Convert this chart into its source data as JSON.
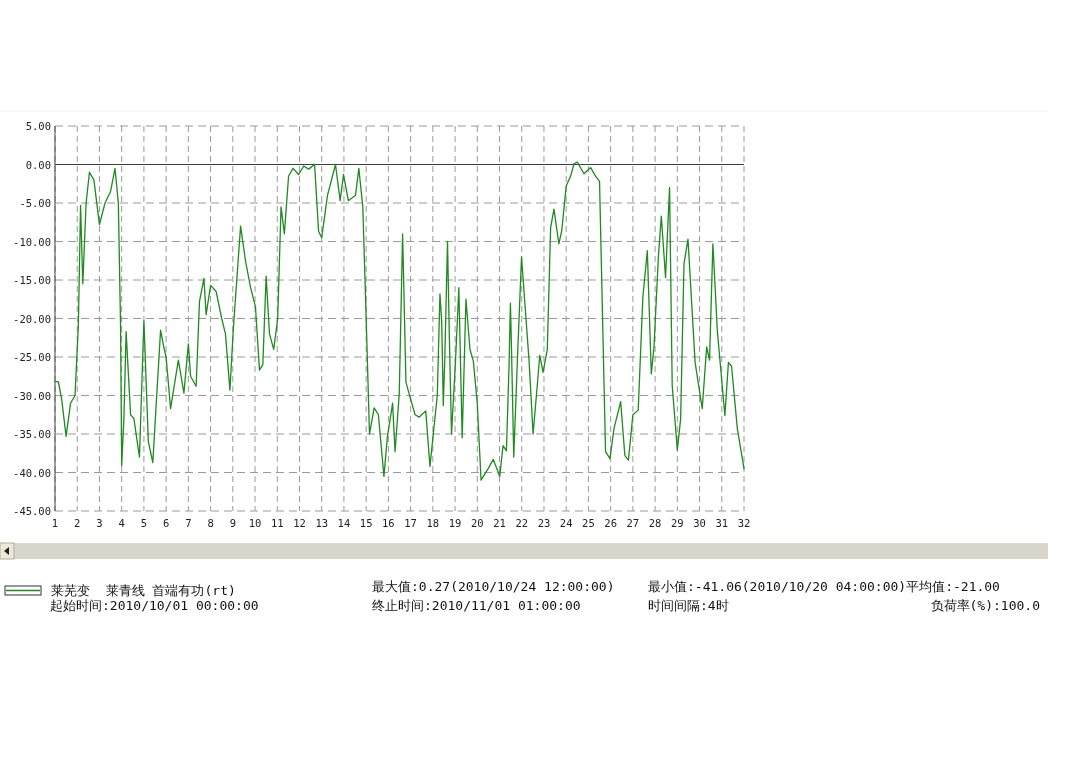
{
  "chart_data": {
    "type": "line",
    "xlim": [
      1,
      32
    ],
    "xticks": [
      1,
      2,
      3,
      4,
      5,
      6,
      7,
      8,
      9,
      10,
      11,
      12,
      13,
      14,
      15,
      16,
      17,
      18,
      19,
      20,
      21,
      22,
      23,
      24,
      25,
      26,
      27,
      28,
      29,
      30,
      31,
      32
    ],
    "ylim": [
      -45,
      5
    ],
    "yticks": [
      {
        "value": 5,
        "label": "5.00"
      },
      {
        "value": 0,
        "label": "0.00"
      },
      {
        "value": -5,
        "label": "-5.00"
      },
      {
        "value": -10,
        "label": "-10.00"
      },
      {
        "value": -15,
        "label": "-15.00"
      },
      {
        "value": -20,
        "label": "-20.00"
      },
      {
        "value": -25,
        "label": "-25.00"
      },
      {
        "value": -30,
        "label": "-30.00"
      },
      {
        "value": -35,
        "label": "-35.00"
      },
      {
        "value": -40,
        "label": "-40.00"
      },
      {
        "value": -45,
        "label": "-45.00"
      }
    ],
    "grid": true,
    "legend": "bottom",
    "line_style": "solid",
    "ref_lines": [
      {
        "axis": "y",
        "value": 0,
        "color": "#404040"
      }
    ],
    "series": [
      {
        "name": "莱芜变  莱青线 首端有功(rt)",
        "color": "#1f8a1f",
        "x": [
          1,
          1.15,
          1.3,
          1.5,
          1.7,
          1.9,
          2.0,
          2.05,
          2.15,
          2.25,
          2.4,
          2.55,
          2.75,
          3.0,
          3.25,
          3.5,
          3.7,
          3.85,
          3.95,
          4.0,
          4.1,
          4.2,
          4.4,
          4.55,
          4.8,
          5.0,
          5.2,
          5.4,
          5.75,
          5.9,
          6.0,
          6.2,
          6.55,
          6.8,
          7.0,
          7.1,
          7.35,
          7.5,
          7.7,
          7.8,
          8.0,
          8.25,
          8.5,
          8.67,
          8.87,
          9.02,
          9.35,
          9.57,
          9.8,
          10.02,
          10.2,
          10.35,
          10.5,
          10.65,
          10.84,
          11.02,
          11.17,
          11.32,
          11.51,
          11.71,
          11.96,
          12.19,
          12.41,
          12.68,
          12.86,
          13.0,
          13.26,
          13.62,
          13.83,
          13.98,
          14.2,
          14.52,
          14.67,
          14.85,
          15.0,
          15.15,
          15.36,
          15.55,
          15.8,
          15.95,
          16.19,
          16.3,
          16.49,
          16.64,
          16.79,
          17.2,
          17.39,
          17.68,
          17.87,
          18.2,
          18.32,
          18.4,
          18.47,
          18.54,
          18.66,
          18.74,
          18.84,
          19.02,
          19.17,
          19.32,
          19.49,
          19.67,
          19.82,
          20.0,
          20.17,
          20.49,
          20.72,
          21.01,
          21.16,
          21.31,
          21.43,
          21.49,
          21.54,
          21.64,
          21.81,
          21.99,
          22.09,
          22.33,
          22.51,
          22.66,
          22.81,
          22.96,
          23.15,
          23.3,
          23.45,
          23.67,
          23.8,
          24.0,
          24.2,
          24.35,
          24.5,
          24.8,
          25.1,
          25.32,
          25.5,
          25.77,
          25.97,
          26.15,
          26.45,
          26.64,
          26.8,
          27.0,
          27.24,
          27.45,
          27.65,
          27.83,
          27.95,
          28.15,
          28.28,
          28.47,
          28.65,
          28.77,
          29.0,
          29.15,
          29.3,
          29.48,
          29.8,
          30.12,
          30.32,
          30.45,
          30.6,
          30.8,
          31.14,
          31.3,
          31.44,
          31.7,
          32.0
        ],
        "values": [
          -28.2,
          -28.2,
          -30.5,
          -35.3,
          -31,
          -30,
          -24,
          -21,
          -5.3,
          -15.5,
          -5,
          -1,
          -2,
          -7.8,
          -5,
          -3.5,
          -0.5,
          -5,
          -21,
          -39.1,
          -33,
          -21.7,
          -32.5,
          -33,
          -38,
          -20.3,
          -36,
          -38.7,
          -21.5,
          -23.8,
          -25,
          -31.7,
          -25.4,
          -29.7,
          -23.3,
          -27.5,
          -28.8,
          -17.8,
          -14.8,
          -19.5,
          -15.7,
          -16.5,
          -20,
          -22,
          -29.3,
          -21.5,
          -8,
          -12.5,
          -16,
          -18.5,
          -26.7,
          -26,
          -14.5,
          -22,
          -24,
          -20,
          -5.5,
          -9,
          -1.5,
          -0.5,
          -1.3,
          -0.2,
          -0.6,
          0,
          -8.7,
          -9.5,
          -4,
          0,
          -4.7,
          -1.3,
          -4.7,
          -4,
          -0.5,
          -5.5,
          -20,
          -35,
          -31.6,
          -32.5,
          -40.5,
          -35.5,
          -31,
          -37.3,
          -29.7,
          -9,
          -28.3,
          -32.5,
          -32.8,
          -32,
          -39.2,
          -30,
          -16.8,
          -20.5,
          -31.3,
          -25,
          -10,
          -22,
          -35,
          -25.5,
          -16,
          -35.5,
          -17.5,
          -24,
          -25.5,
          -31,
          -41,
          -39.5,
          -38.3,
          -40.5,
          -36.5,
          -37.2,
          -26,
          -18,
          -24,
          -38,
          -25,
          -12,
          -16,
          -25.5,
          -35,
          -30,
          -24.8,
          -27,
          -24,
          -8.2,
          -5.8,
          -10.3,
          -8.6,
          -2.8,
          -1.5,
          0.1,
          0.3,
          -1.2,
          -0.4,
          -1.5,
          -2.2,
          -37.3,
          -38.2,
          -34.3,
          -30.8,
          -37.8,
          -38.4,
          -32.5,
          -31.9,
          -17.2,
          -11.2,
          -27.2,
          -23.7,
          -11.9,
          -6.7,
          -14.7,
          -3,
          -28.7,
          -37.1,
          -33,
          -12.9,
          -9.7,
          -25.7,
          -31.7,
          -23.7,
          -25.4,
          -10.3,
          -21.6,
          -32.6,
          -25.7,
          -26.2,
          -34.3,
          -39.5
        ]
      }
    ],
    "annotations": [
      "最大值:0.27(2010/10/24 12:00:00)",
      "最小值:-41.06(2010/10/20 04:00:00)平均值:-21.00",
      "起始时间:2010/10/01 00:00:00",
      "终止时间:2010/11/01 01:00:00",
      "时间间隔:4时",
      "负荷率(%):100.0"
    ]
  }
}
